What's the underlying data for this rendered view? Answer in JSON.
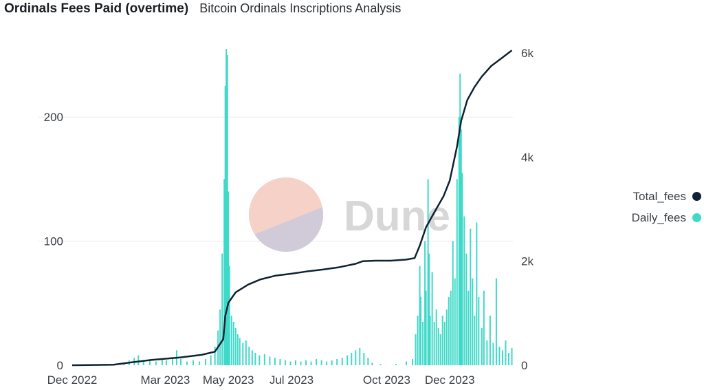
{
  "header": {
    "title": "Ordinals Fees Paid (overtime)",
    "subtitle": "Bitcoin Ordinals Inscriptions Analysis"
  },
  "watermark": {
    "text": "Dune"
  },
  "colors": {
    "total_fees": "#0f2233",
    "daily_fees": "#3fd9c8",
    "grid": "#ececec"
  },
  "legend": {
    "position": "right",
    "items": [
      {
        "label": "Total_fees",
        "color": "#0f2233"
      },
      {
        "label": "Daily_fees",
        "color": "#3fd9c8"
      }
    ]
  },
  "chart_data": {
    "type": "bar",
    "title": "Ordinals Fees Paid (overtime)",
    "subtitle": "Bitcoin Ordinals Inscriptions Analysis",
    "x_type": "date",
    "x_range": [
      "2022-12-01",
      "2024-01-31"
    ],
    "x_ticks": [
      {
        "date": "2022-12-01",
        "label": "Dec 2022"
      },
      {
        "date": "2023-03-01",
        "label": "Mar 2023"
      },
      {
        "date": "2023-05-01",
        "label": "May 2023"
      },
      {
        "date": "2023-07-01",
        "label": "Jul 2023"
      },
      {
        "date": "2023-10-01",
        "label": "Oct 2023"
      },
      {
        "date": "2023-12-01",
        "label": "Dec 2023"
      }
    ],
    "y_left": {
      "range": [
        0,
        260
      ],
      "ticks": [
        0,
        100,
        200
      ],
      "tick_labels": [
        "0",
        "100",
        "200"
      ]
    },
    "y_right": {
      "range": [
        0,
        6200
      ],
      "ticks": [
        0,
        2000,
        4000,
        6000
      ],
      "tick_labels": [
        "0",
        "2k",
        "4k",
        "6k"
      ]
    },
    "grid": true,
    "series": [
      {
        "name": "Daily_fees",
        "type": "bar",
        "axis": "left",
        "points": [
          [
            "2023-01-20",
            2
          ],
          [
            "2023-01-25",
            4
          ],
          [
            "2023-01-30",
            6
          ],
          [
            "2023-02-03",
            8
          ],
          [
            "2023-02-08",
            3
          ],
          [
            "2023-02-14",
            4
          ],
          [
            "2023-02-20",
            3
          ],
          [
            "2023-02-26",
            5
          ],
          [
            "2023-03-02",
            4
          ],
          [
            "2023-03-08",
            6
          ],
          [
            "2023-03-12",
            12
          ],
          [
            "2023-03-16",
            5
          ],
          [
            "2023-03-22",
            3
          ],
          [
            "2023-03-28",
            4
          ],
          [
            "2023-04-03",
            3
          ],
          [
            "2023-04-09",
            5
          ],
          [
            "2023-04-14",
            8
          ],
          [
            "2023-04-18",
            15
          ],
          [
            "2023-04-21",
            28
          ],
          [
            "2023-04-23",
            45
          ],
          [
            "2023-04-25",
            90
          ],
          [
            "2023-04-27",
            150
          ],
          [
            "2023-04-28",
            225
          ],
          [
            "2023-04-29",
            255
          ],
          [
            "2023-04-30",
            250
          ],
          [
            "2023-05-01",
            140
          ],
          [
            "2023-05-02",
            80
          ],
          [
            "2023-05-04",
            40
          ],
          [
            "2023-05-06",
            35
          ],
          [
            "2023-05-08",
            30
          ],
          [
            "2023-05-10",
            25
          ],
          [
            "2023-05-12",
            22
          ],
          [
            "2023-05-15",
            18
          ],
          [
            "2023-05-18",
            20
          ],
          [
            "2023-05-21",
            15
          ],
          [
            "2023-05-24",
            12
          ],
          [
            "2023-05-27",
            10
          ],
          [
            "2023-05-31",
            8
          ],
          [
            "2023-06-05",
            9
          ],
          [
            "2023-06-10",
            7
          ],
          [
            "2023-06-15",
            6
          ],
          [
            "2023-06-20",
            5
          ],
          [
            "2023-06-25",
            4
          ],
          [
            "2023-06-30",
            3
          ],
          [
            "2023-07-05",
            4
          ],
          [
            "2023-07-10",
            3
          ],
          [
            "2023-07-15",
            4
          ],
          [
            "2023-07-20",
            3
          ],
          [
            "2023-07-25",
            5
          ],
          [
            "2023-07-30",
            4
          ],
          [
            "2023-08-04",
            3
          ],
          [
            "2023-08-09",
            4
          ],
          [
            "2023-08-14",
            5
          ],
          [
            "2023-08-19",
            6
          ],
          [
            "2023-08-24",
            8
          ],
          [
            "2023-08-28",
            10
          ],
          [
            "2023-09-01",
            12
          ],
          [
            "2023-09-05",
            14
          ],
          [
            "2023-09-09",
            10
          ],
          [
            "2023-09-13",
            6
          ],
          [
            "2023-09-17",
            2
          ],
          [
            "2023-09-25",
            1
          ],
          [
            "2023-10-10",
            1
          ],
          [
            "2023-10-20",
            3
          ],
          [
            "2023-10-26",
            5
          ],
          [
            "2023-10-29",
            25
          ],
          [
            "2023-10-31",
            40
          ],
          [
            "2023-11-02",
            80
          ],
          [
            "2023-11-03",
            55
          ],
          [
            "2023-11-05",
            35
          ],
          [
            "2023-11-07",
            100
          ],
          [
            "2023-11-08",
            60
          ],
          [
            "2023-11-10",
            150
          ],
          [
            "2023-11-11",
            90
          ],
          [
            "2023-11-12",
            40
          ],
          [
            "2023-11-14",
            75
          ],
          [
            "2023-11-16",
            35
          ],
          [
            "2023-11-18",
            45
          ],
          [
            "2023-11-20",
            30
          ],
          [
            "2023-11-22",
            25
          ],
          [
            "2023-11-24",
            40
          ],
          [
            "2023-11-26",
            35
          ],
          [
            "2023-11-28",
            45
          ],
          [
            "2023-11-30",
            55
          ],
          [
            "2023-12-02",
            60
          ],
          [
            "2023-12-04",
            100
          ],
          [
            "2023-12-06",
            70
          ],
          [
            "2023-12-08",
            150
          ],
          [
            "2023-12-10",
            200
          ],
          [
            "2023-12-11",
            235
          ],
          [
            "2023-12-12",
            190
          ],
          [
            "2023-12-13",
            155
          ],
          [
            "2023-12-15",
            120
          ],
          [
            "2023-12-17",
            90
          ],
          [
            "2023-12-19",
            60
          ],
          [
            "2023-12-21",
            110
          ],
          [
            "2023-12-23",
            70
          ],
          [
            "2023-12-25",
            40
          ],
          [
            "2023-12-27",
            115
          ],
          [
            "2023-12-29",
            55
          ],
          [
            "2024-01-01",
            30
          ],
          [
            "2024-01-03",
            60
          ],
          [
            "2024-01-06",
            20
          ],
          [
            "2024-01-09",
            40
          ],
          [
            "2024-01-12",
            18
          ],
          [
            "2024-01-15",
            70
          ],
          [
            "2024-01-18",
            15
          ],
          [
            "2024-01-21",
            12
          ],
          [
            "2024-01-24",
            20
          ],
          [
            "2024-01-27",
            10
          ],
          [
            "2024-01-30",
            14
          ]
        ]
      },
      {
        "name": "Total_fees",
        "type": "line",
        "axis": "right",
        "points": [
          [
            "2022-12-01",
            0
          ],
          [
            "2023-01-10",
            10
          ],
          [
            "2023-01-25",
            50
          ],
          [
            "2023-02-15",
            100
          ],
          [
            "2023-03-15",
            150
          ],
          [
            "2023-04-05",
            200
          ],
          [
            "2023-04-18",
            260
          ],
          [
            "2023-04-26",
            500
          ],
          [
            "2023-04-28",
            950
          ],
          [
            "2023-05-01",
            1200
          ],
          [
            "2023-05-08",
            1400
          ],
          [
            "2023-05-20",
            1550
          ],
          [
            "2023-06-01",
            1650
          ],
          [
            "2023-06-15",
            1720
          ],
          [
            "2023-07-01",
            1760
          ],
          [
            "2023-07-15",
            1800
          ],
          [
            "2023-08-01",
            1840
          ],
          [
            "2023-08-15",
            1880
          ],
          [
            "2023-09-01",
            1950
          ],
          [
            "2023-09-08",
            2000
          ],
          [
            "2023-09-20",
            2010
          ],
          [
            "2023-10-05",
            2010
          ],
          [
            "2023-10-20",
            2030
          ],
          [
            "2023-10-28",
            2060
          ],
          [
            "2023-11-02",
            2300
          ],
          [
            "2023-11-08",
            2650
          ],
          [
            "2023-11-15",
            2900
          ],
          [
            "2023-11-25",
            3250
          ],
          [
            "2023-12-01",
            3550
          ],
          [
            "2023-12-08",
            4200
          ],
          [
            "2023-12-12",
            4700
          ],
          [
            "2023-12-18",
            5100
          ],
          [
            "2023-12-25",
            5350
          ],
          [
            "2024-01-01",
            5550
          ],
          [
            "2024-01-10",
            5750
          ],
          [
            "2024-01-20",
            5900
          ],
          [
            "2024-01-30",
            6050
          ]
        ]
      }
    ]
  }
}
